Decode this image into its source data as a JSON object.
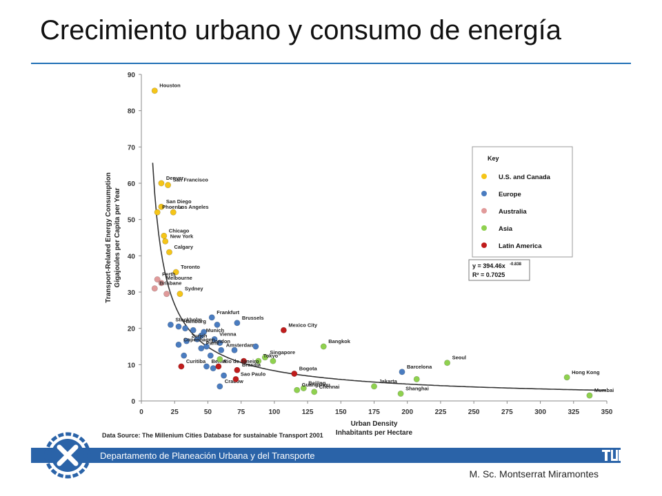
{
  "slide": {
    "title": "Crecimiento urbano y consumo de energía",
    "footer": "Departamento de Planeación Urbana y del Transporte",
    "author": "M. Sc. Montserrat Miramontes"
  },
  "colors": {
    "accent": "#1f6fb5",
    "footer_bar": "#2a63a8",
    "us_canada": "#f5c518",
    "europe": "#4a7cc0",
    "australia": "#e19a9a",
    "asia": "#8fd14f",
    "latin_america": "#c01c1c"
  },
  "icons": {
    "department_logo": "x-circle-logo",
    "university_logo": "tum-logo"
  },
  "chart_data": {
    "type": "scatter",
    "xlabel": "Urban Density\nInhabitants per Hectare",
    "ylabel": "Transport-Related Energy Consumption\nGigajoules per Capita per Year",
    "xlim": [
      0,
      350
    ],
    "ylim": [
      0,
      90
    ],
    "xticks": [
      0,
      25,
      50,
      75,
      100,
      125,
      150,
      175,
      200,
      225,
      250,
      275,
      300,
      325,
      350
    ],
    "yticks": [
      0,
      10,
      20,
      30,
      40,
      50,
      60,
      70,
      80,
      90
    ],
    "source": "Data Source: The Millenium Cities Database for sustainable Transport 2001",
    "grid": false,
    "legend_title": "Key",
    "legend_position": "right",
    "equation": "y = 394.46x",
    "equation_exp": "-0.838",
    "r2": "R² = 0.7025",
    "trend": {
      "a": 394.46,
      "b": -0.838
    },
    "series": [
      {
        "name": "U.S. and Canada",
        "color": "#f5c518",
        "points": [
          {
            "x": 10,
            "y": 85.5,
            "label": "Houston"
          },
          {
            "x": 15,
            "y": 60,
            "label": "Denver"
          },
          {
            "x": 20,
            "y": 59.5,
            "label": "San Francisco"
          },
          {
            "x": 15,
            "y": 53.5,
            "label": "San Diego"
          },
          {
            "x": 24,
            "y": 52,
            "label": "Los Angeles"
          },
          {
            "x": 12,
            "y": 52,
            "label": "Phoenix"
          },
          {
            "x": 17,
            "y": 45.5,
            "label": "Chicago"
          },
          {
            "x": 18,
            "y": 44,
            "label": "New York"
          },
          {
            "x": 21,
            "y": 41,
            "label": "Calgary"
          },
          {
            "x": 26,
            "y": 35.5,
            "label": "Toronto"
          },
          {
            "x": 29,
            "y": 29.5,
            "label": "Sydney"
          }
        ]
      },
      {
        "name": "Europe",
        "color": "#4a7cc0",
        "points": [
          {
            "x": 53,
            "y": 23,
            "label": "Frankfurt"
          },
          {
            "x": 72,
            "y": 21.5,
            "label": "Brussels"
          },
          {
            "x": 28,
            "y": 20.5,
            "label": "Hamburg"
          },
          {
            "x": 22,
            "y": 21,
            "label": "Stockholm"
          },
          {
            "x": 33,
            "y": 20,
            "label": ""
          },
          {
            "x": 39,
            "y": 19.5,
            "label": ""
          },
          {
            "x": 47,
            "y": 19,
            "label": ""
          },
          {
            "x": 57,
            "y": 21,
            "label": ""
          },
          {
            "x": 45,
            "y": 18,
            "label": "Munich"
          },
          {
            "x": 55,
            "y": 17,
            "label": "Vienna"
          },
          {
            "x": 59,
            "y": 16,
            "label": ""
          },
          {
            "x": 42,
            "y": 17,
            "label": ""
          },
          {
            "x": 34,
            "y": 16.5,
            "label": "Zurich"
          },
          {
            "x": 49,
            "y": 15,
            "label": "London"
          },
          {
            "x": 28,
            "y": 15.5,
            "label": "Copenhagen"
          },
          {
            "x": 45,
            "y": 14.5,
            "label": "Paris"
          },
          {
            "x": 60,
            "y": 14,
            "label": "Amsterdam"
          },
          {
            "x": 70,
            "y": 14,
            "label": ""
          },
          {
            "x": 86,
            "y": 15,
            "label": ""
          },
          {
            "x": 52,
            "y": 12.5,
            "label": ""
          },
          {
            "x": 32,
            "y": 12.5,
            "label": ""
          },
          {
            "x": 49,
            "y": 9.5,
            "label": "Berlin"
          },
          {
            "x": 54,
            "y": 9,
            "label": ""
          },
          {
            "x": 62,
            "y": 7,
            "label": ""
          },
          {
            "x": 59,
            "y": 4,
            "label": "Cracow"
          },
          {
            "x": 196,
            "y": 8,
            "label": "Barcelona"
          }
        ]
      },
      {
        "name": "Australia",
        "color": "#e19a9a",
        "points": [
          {
            "x": 12,
            "y": 33.5,
            "label": "Perth"
          },
          {
            "x": 15,
            "y": 32.5,
            "label": "Melbourne"
          },
          {
            "x": 10,
            "y": 31,
            "label": "Brisbane"
          },
          {
            "x": 19,
            "y": 29.5,
            "label": ""
          }
        ]
      },
      {
        "name": "Asia",
        "color": "#8fd14f",
        "points": [
          {
            "x": 137,
            "y": 15,
            "label": "Bangkok"
          },
          {
            "x": 230,
            "y": 10.5,
            "label": "Seoul"
          },
          {
            "x": 93,
            "y": 12,
            "label": "Singapore"
          },
          {
            "x": 88,
            "y": 11,
            "label": "Tokyo"
          },
          {
            "x": 99,
            "y": 11,
            "label": ""
          },
          {
            "x": 59,
            "y": 11.5,
            "label": ""
          },
          {
            "x": 320,
            "y": 6.5,
            "label": "Hong Kong"
          },
          {
            "x": 207,
            "y": 6,
            "label": ""
          },
          {
            "x": 175,
            "y": 4,
            "label": "Jakarta"
          },
          {
            "x": 122,
            "y": 3.5,
            "label": "Beijing"
          },
          {
            "x": 117,
            "y": 3,
            "label": "Guangzhou"
          },
          {
            "x": 130,
            "y": 2.5,
            "label": "Chennai"
          },
          {
            "x": 195,
            "y": 2,
            "label": "Shanghai"
          },
          {
            "x": 337,
            "y": 1.5,
            "label": "Mumbai"
          }
        ]
      },
      {
        "name": "Latin America",
        "color": "#c01c1c",
        "points": [
          {
            "x": 107,
            "y": 19.5,
            "label": "Mexico City"
          },
          {
            "x": 77,
            "y": 11,
            "label": ""
          },
          {
            "x": 30,
            "y": 9.5,
            "label": "Curitiba"
          },
          {
            "x": 58,
            "y": 9.5,
            "label": "Rio de Janeiro"
          },
          {
            "x": 72,
            "y": 8.5,
            "label": "Brasilia"
          },
          {
            "x": 115,
            "y": 7.5,
            "label": "Bogota"
          },
          {
            "x": 71,
            "y": 6,
            "label": "Sao Paulo"
          }
        ]
      }
    ]
  }
}
